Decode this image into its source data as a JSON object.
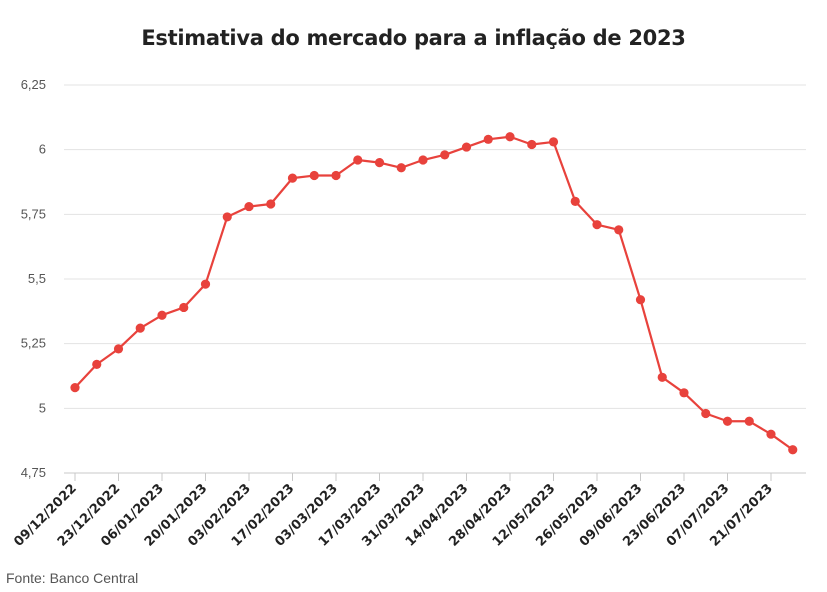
{
  "chart_data": {
    "type": "line",
    "title": "Estimativa do mercado para a inflação de 2023",
    "source": "Fonte: Banco Central",
    "xlabel": "",
    "ylabel": "",
    "ylim": [
      4.75,
      6.25
    ],
    "y_ticks": [
      "4,75",
      "5",
      "5,25",
      "5,5",
      "5,75",
      "6",
      "6,25"
    ],
    "y_tick_values": [
      4.75,
      5.0,
      5.25,
      5.5,
      5.75,
      6.0,
      6.25
    ],
    "x_tick_labels": [
      "09/12/2022",
      "23/12/2022",
      "06/01/2023",
      "20/01/2023",
      "03/02/2023",
      "17/02/2023",
      "03/03/2023",
      "17/03/2023",
      "31/03/2023",
      "14/04/2023",
      "28/04/2023",
      "12/05/2023",
      "26/05/2023",
      "09/06/2023",
      "23/06/2023",
      "07/07/2023",
      "21/07/2023"
    ],
    "grid": true,
    "legend": "none",
    "color": "#e8423c",
    "series": [
      {
        "values": [
          5.08,
          5.17,
          5.23,
          5.31,
          5.36,
          5.39,
          5.48,
          5.74,
          5.78,
          5.79,
          5.89,
          5.9,
          5.9,
          5.96,
          5.95,
          5.93,
          5.96,
          5.98,
          6.01,
          6.04,
          6.05,
          6.02,
          6.03,
          5.8,
          5.71,
          5.69,
          5.42,
          5.12,
          5.06,
          4.98,
          4.95,
          4.95,
          4.9,
          4.84
        ]
      }
    ]
  }
}
